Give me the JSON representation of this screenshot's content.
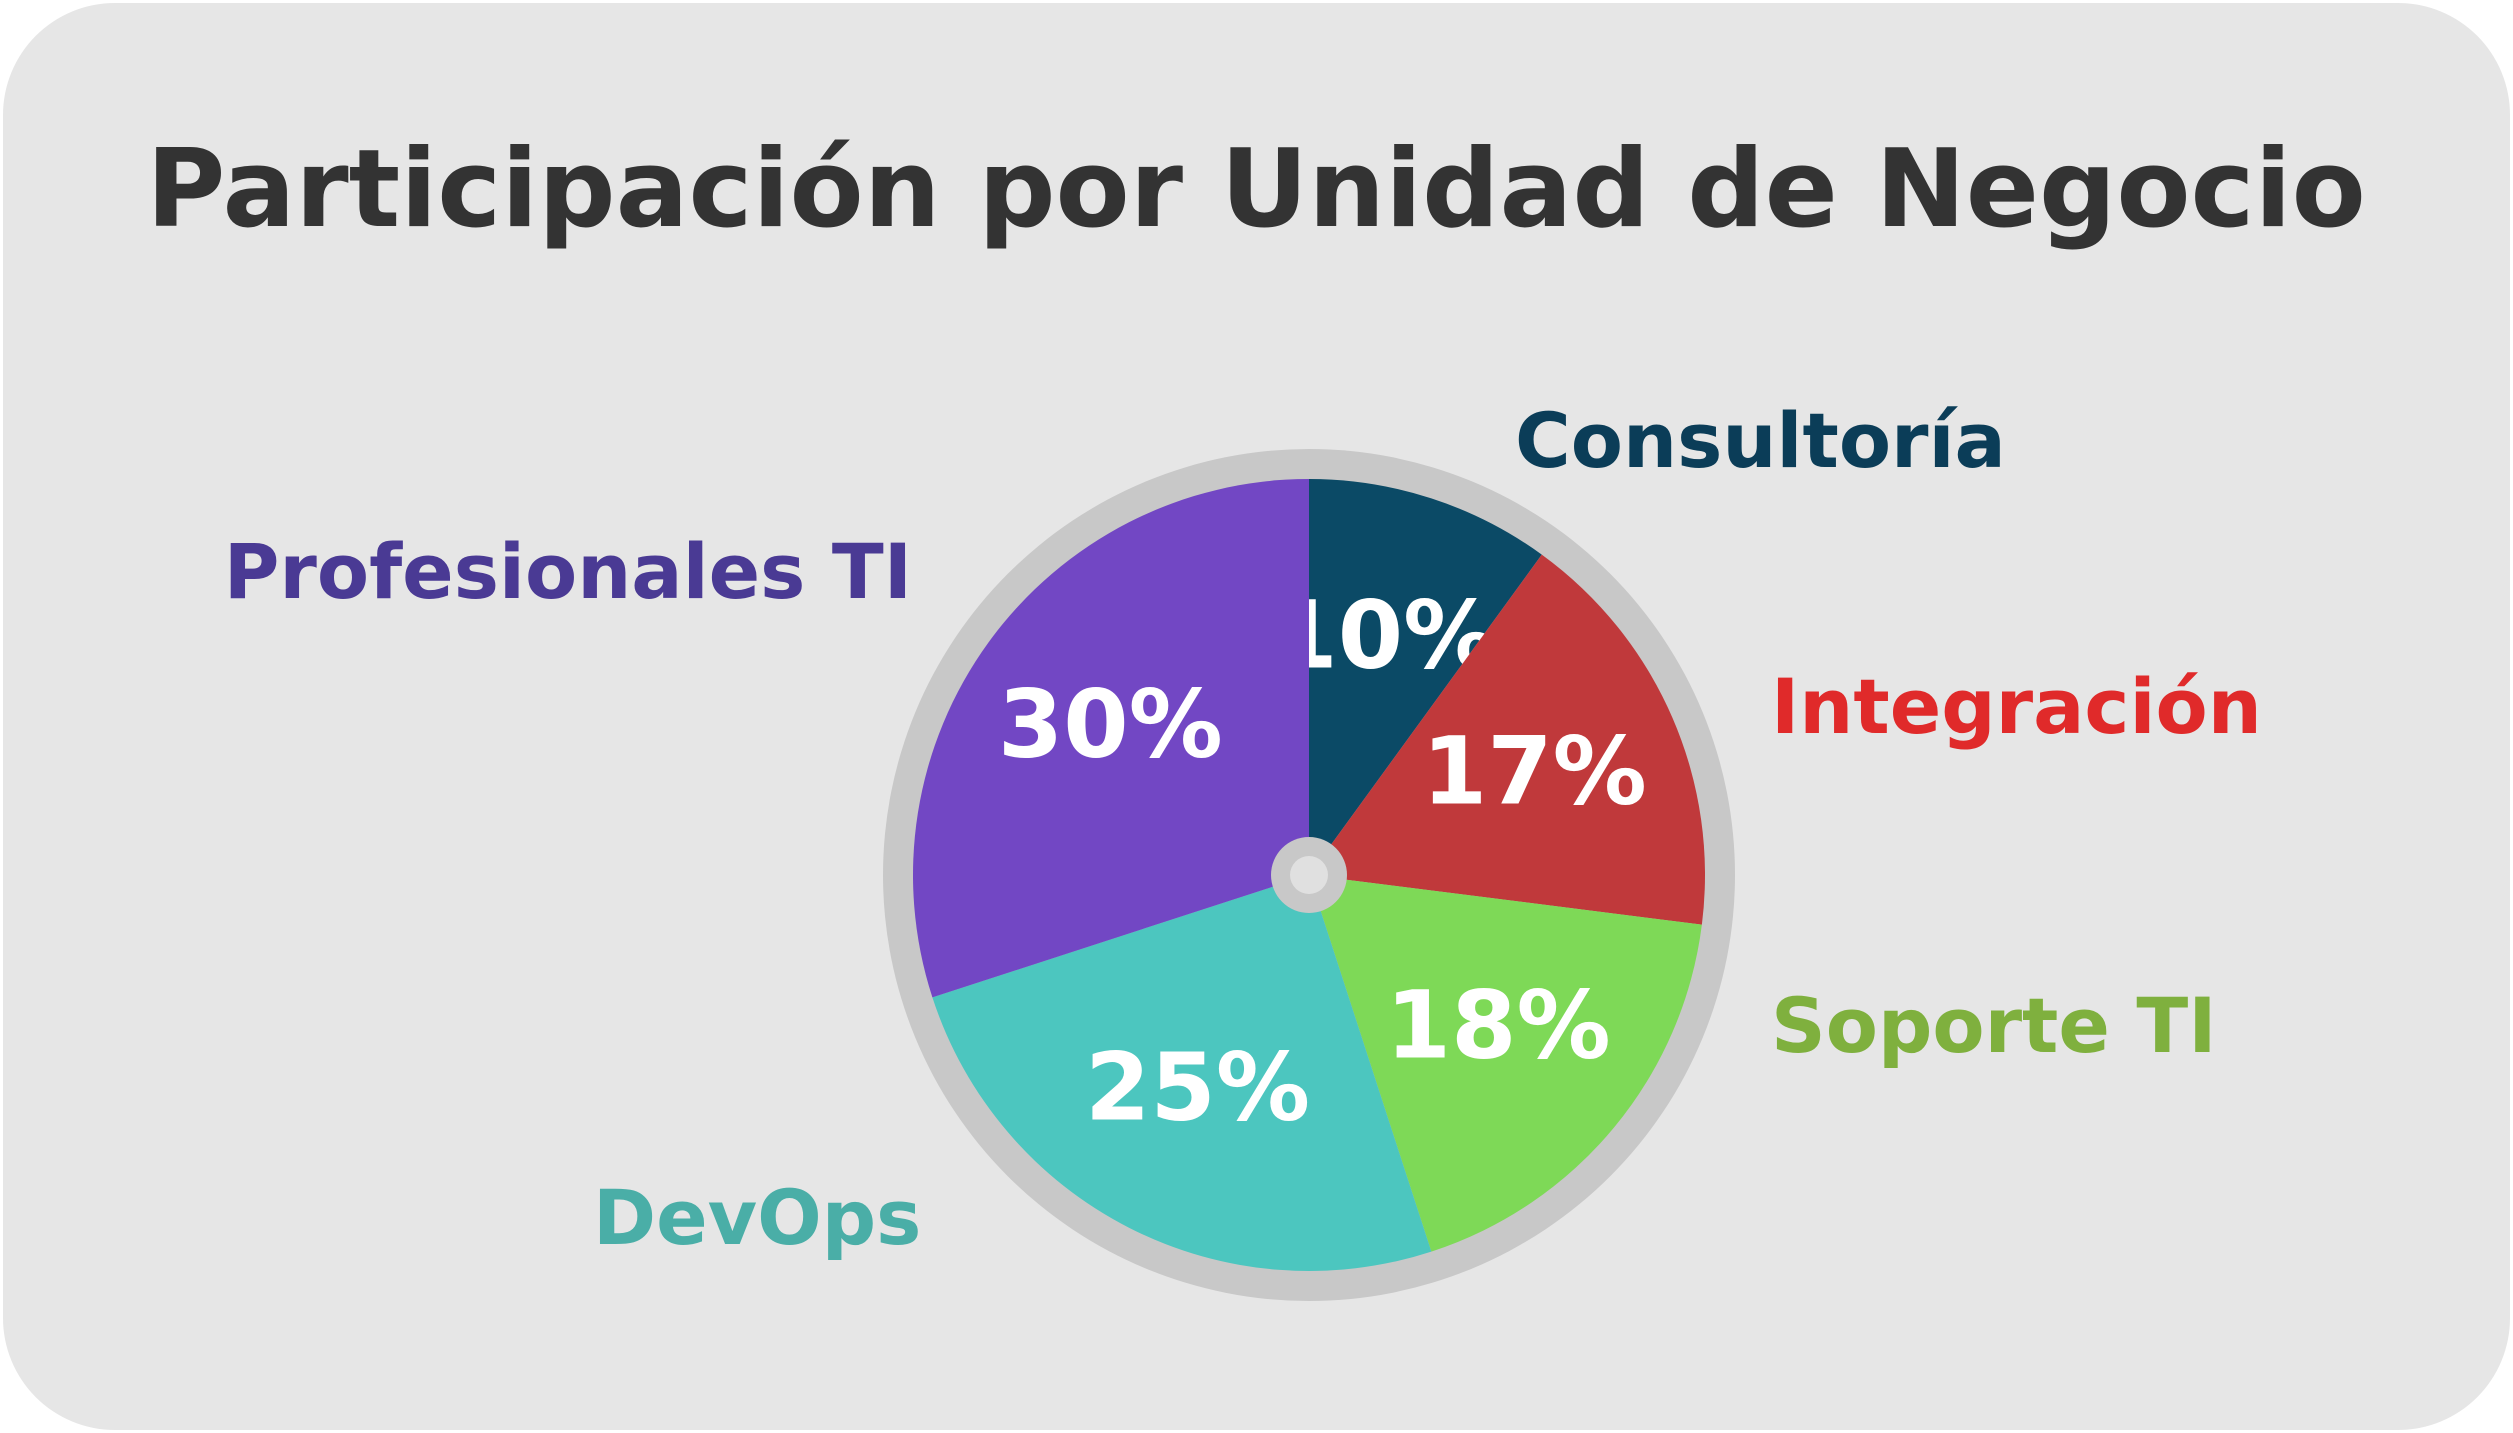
{
  "chart_data": {
    "type": "pie",
    "title": "Participación por Unidad de Negocio",
    "categories": [
      "Consultoría",
      "Integración",
      "Soporte TI",
      "DevOps",
      "Profesionales TI"
    ],
    "values": [
      10,
      17,
      18,
      25,
      30
    ],
    "value_labels": [
      "10%",
      "17%",
      "18%",
      "25%",
      "30%"
    ],
    "colors": [
      "#0b4a66",
      "#c0393b",
      "#7ed957",
      "#4cc6bf",
      "#7247c4"
    ],
    "label_colors": [
      "#0b3d58",
      "#e02a2a",
      "#7fb03e",
      "#4aaea7",
      "#4a3a94"
    ]
  }
}
